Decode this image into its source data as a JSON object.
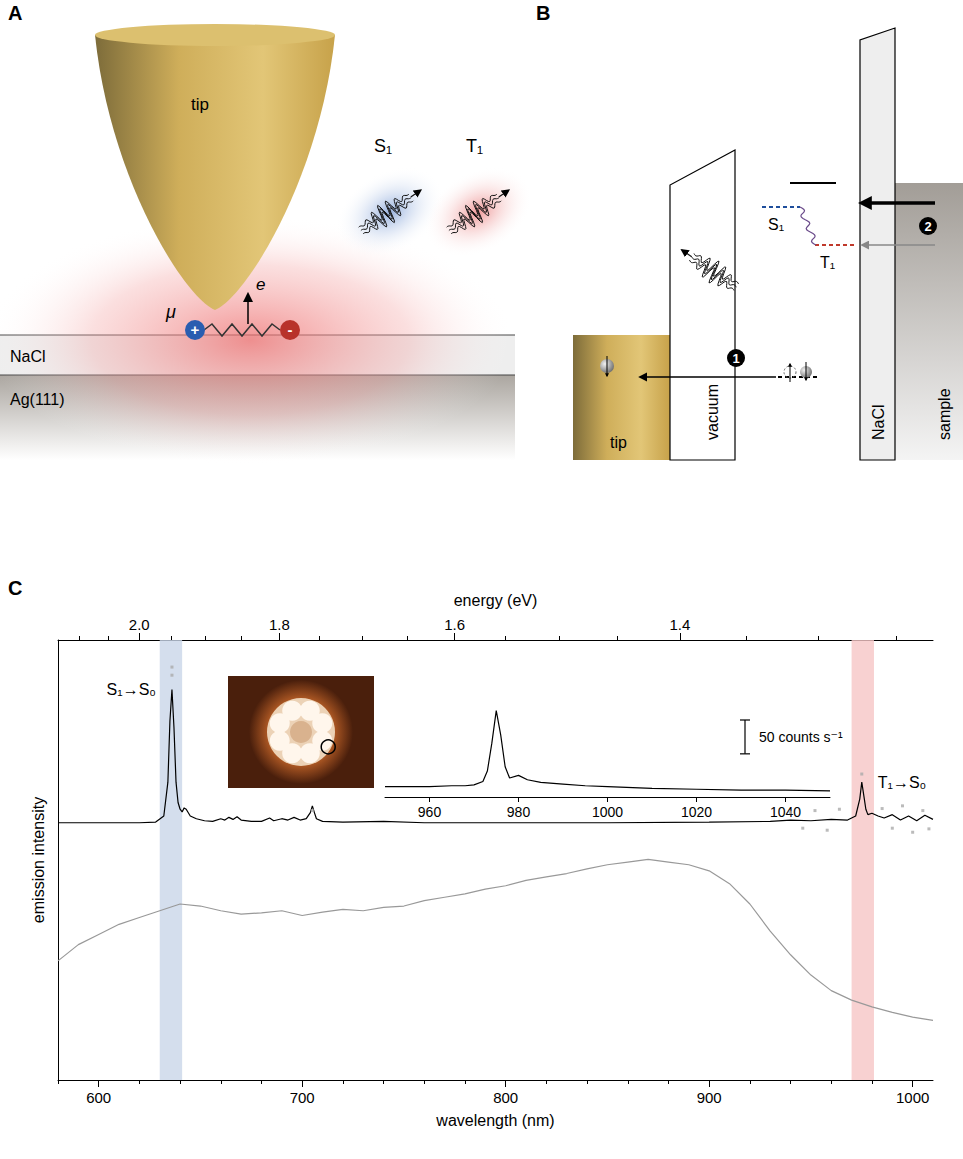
{
  "diagram_a": {
    "letter": "A",
    "tip": "tip",
    "photons": [
      "S₁",
      "T₁"
    ],
    "electron": "e",
    "dipole": "μ",
    "charges": [
      "+",
      "-"
    ],
    "layers": [
      "NaCl",
      "Ag(111)"
    ]
  },
  "diagram_b": {
    "letter": "B",
    "tip": "tip",
    "vacuum": "vacuum",
    "insulator": "NaCl",
    "sample": "sample",
    "states": [
      "S₁",
      "T₁"
    ],
    "steps": [
      "1",
      "2"
    ]
  },
  "chart_data": {
    "type": "line",
    "letter": "C",
    "x_label": "wavelength (nm)",
    "x2_label": "energy (eV)",
    "y_label": "emission intensity",
    "xlim": [
      580,
      1010
    ],
    "xticks": [
      600,
      700,
      800,
      900,
      1000
    ],
    "xminorticks": [
      580,
      620,
      640,
      660,
      680,
      720,
      740,
      760,
      780,
      820,
      840,
      860,
      880,
      920,
      940,
      960,
      980
    ],
    "x2ticks": [
      {
        "value": 2.0,
        "label": "2.0"
      },
      1.8,
      1.6,
      1.4
    ],
    "x2minorticks": [
      2.1,
      2.05,
      1.95,
      1.9,
      1.85,
      1.75,
      1.7,
      1.65,
      1.55,
      1.5,
      1.45,
      1.35,
      1.3,
      1.25
    ],
    "ylim": [
      0,
      650
    ],
    "tick_labels": "x",
    "grid": false,
    "series": [
      {
        "type": "line",
        "color": "#999999",
        "x": [
          580,
          590,
          600,
          610,
          620,
          630,
          640,
          650,
          660,
          670,
          680,
          690,
          700,
          710,
          720,
          730,
          740,
          750,
          760,
          770,
          780,
          790,
          800,
          810,
          820,
          830,
          840,
          850,
          860,
          870,
          880,
          890,
          900,
          910,
          920,
          930,
          940,
          950,
          960,
          970,
          980,
          990,
          1000,
          1010
        ],
        "values": [
          176,
          200,
          215,
          230,
          240,
          250,
          260,
          257,
          250,
          245,
          247,
          250,
          243,
          248,
          252,
          250,
          255,
          257,
          265,
          270,
          275,
          282,
          287,
          295,
          300,
          305,
          312,
          318,
          322,
          326,
          322,
          318,
          309,
          290,
          260,
          220,
          185,
          155,
          132,
          118,
          108,
          100,
          93,
          88
        ]
      },
      {
        "type": "line",
        "color": "#000000",
        "x": [
          580,
          600,
          620,
          628,
          632,
          634,
          635,
          636,
          637,
          638,
          639,
          640,
          641,
          642,
          643,
          645,
          648,
          652,
          656,
          660,
          662,
          664,
          666,
          668,
          670,
          675,
          680,
          684,
          686,
          690,
          693,
          696,
          699,
          702,
          704,
          705,
          706,
          707,
          710,
          720,
          740,
          760,
          800,
          850,
          900,
          930,
          940,
          950,
          960,
          968,
          972,
          974,
          975,
          976,
          977,
          978,
          980,
          983,
          986,
          990,
          994,
          998,
          1002,
          1006,
          1010
        ],
        "values": [
          380,
          380,
          380,
          381,
          390,
          440,
          530,
          577,
          520,
          440,
          410,
          400,
          396,
          402,
          400,
          390,
          386,
          383,
          382,
          386,
          384,
          388,
          385,
          389,
          384,
          382,
          382,
          387,
          383,
          386,
          384,
          388,
          384,
          386,
          395,
          405,
          395,
          386,
          382,
          381,
          382,
          380,
          380,
          380,
          381,
          382,
          384,
          383,
          385,
          384,
          390,
          415,
          440,
          420,
          400,
          392,
          394,
          390,
          387,
          392,
          384,
          390,
          383,
          391,
          385
        ]
      },
      {
        "type": "scatter",
        "marker": "square",
        "color": "#aaaaaa",
        "x": [
          636,
          636,
          705,
          975,
          940,
          946,
          952,
          958,
          964,
          985,
          990,
          995,
          1000,
          1005,
          1008
        ],
        "values": [
          610,
          598,
          398,
          452,
          395,
          372,
          398,
          369,
          400,
          401,
          372,
          405,
          366,
          398,
          371
        ]
      }
    ],
    "bands": [
      {
        "from": 630,
        "to": 641,
        "color": "#c9d6e8",
        "label": "S₁→S₀"
      },
      {
        "from": 970,
        "to": 981,
        "color": "#f6c6c6",
        "label": "T₁→S₀"
      }
    ],
    "scale_bar": {
      "value": 50,
      "label": "50 counts s⁻¹"
    },
    "inset": {
      "type": "line",
      "color": "#000000",
      "tick_labels": "x",
      "xlim": [
        950,
        1050
      ],
      "xticks": [
        960,
        980,
        1000,
        1020,
        1040
      ],
      "ylim": [
        0,
        110
      ],
      "x": [
        950,
        955,
        960,
        965,
        968,
        970,
        972,
        973,
        974,
        975,
        976,
        977,
        978,
        980,
        982,
        985,
        990,
        995,
        1000,
        1010,
        1020,
        1030,
        1040,
        1050
      ],
      "values": [
        12,
        12,
        12,
        13,
        13,
        14,
        18,
        30,
        62,
        100,
        72,
        35,
        22,
        25,
        20,
        17,
        15,
        13,
        12,
        10,
        9,
        8,
        8,
        7
      ]
    }
  }
}
